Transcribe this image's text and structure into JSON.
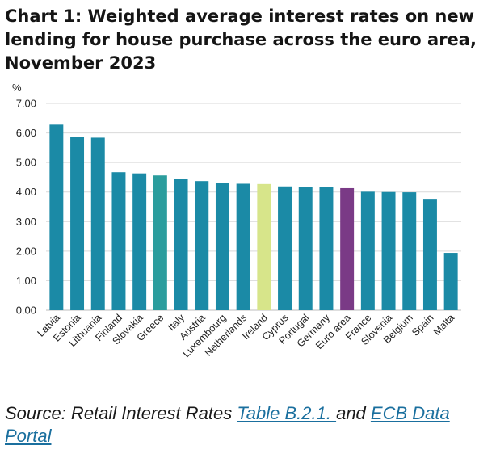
{
  "title": "Chart 1: Weighted average interest rates on new lending for house purchase across the euro area, November 2023",
  "source": {
    "prefix": "Source: Retail Interest Rates ",
    "link1": "Table B.2.1. ",
    "middle": "and ",
    "link2": "ECB Data Portal"
  },
  "colors": {
    "default_bar": "#1b8aa6",
    "highlight_bar": "#2b9d9d",
    "ireland_bar": "#d7e58a",
    "euro_area_bar": "#7a3a86",
    "gridline": "#d9d9d9",
    "axis": "#bdbdbd"
  },
  "chart_data": {
    "type": "bar",
    "ylabel": "%",
    "ylim": [
      0,
      7
    ],
    "yticks": [
      "0.00",
      "1.00",
      "2.00",
      "3.00",
      "4.00",
      "5.00",
      "6.00",
      "7.00"
    ],
    "grid": true,
    "categories": [
      "Latvia",
      "Estonia",
      "Lithuania",
      "Finland",
      "Slovakia",
      "Greece",
      "Italy",
      "Austria",
      "Luxembourg",
      "Netherlands",
      "Ireland",
      "Cyprus",
      "Portugal",
      "Germany",
      "Euro area",
      "France",
      "Slovenia",
      "Belgium",
      "Spain",
      "Malta"
    ],
    "values": [
      6.28,
      5.87,
      5.84,
      4.67,
      4.63,
      4.56,
      4.45,
      4.37,
      4.31,
      4.28,
      4.27,
      4.19,
      4.17,
      4.17,
      4.13,
      4.01,
      4.0,
      3.99,
      3.77,
      1.94
    ],
    "bar_colors": [
      "#1b8aa6",
      "#1b8aa6",
      "#1b8aa6",
      "#1b8aa6",
      "#1b8aa6",
      "#2b9d9d",
      "#1b8aa6",
      "#1b8aa6",
      "#1b8aa6",
      "#1b8aa6",
      "#d7e58a",
      "#1b8aa6",
      "#1b8aa6",
      "#1b8aa6",
      "#7a3a86",
      "#1b8aa6",
      "#1b8aa6",
      "#1b8aa6",
      "#1b8aa6",
      "#1b8aa6"
    ]
  }
}
